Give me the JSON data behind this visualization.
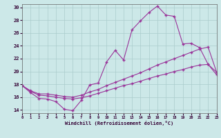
{
  "xlabel": "Windchill (Refroidissement éolien,°C)",
  "background_color": "#cce8e8",
  "grid_color": "#aacccc",
  "line_color": "#993399",
  "xlim": [
    0,
    23
  ],
  "ylim": [
    13.5,
    30.5
  ],
  "yticks": [
    14,
    16,
    18,
    20,
    22,
    24,
    26,
    28,
    30
  ],
  "xticks": [
    0,
    1,
    2,
    3,
    4,
    5,
    6,
    7,
    8,
    9,
    10,
    11,
    12,
    13,
    14,
    15,
    16,
    17,
    18,
    19,
    20,
    21,
    22,
    23
  ],
  "series1_x": [
    0,
    1,
    2,
    3,
    4,
    5,
    6,
    7,
    8,
    9,
    10,
    11,
    12,
    13,
    14,
    15,
    16,
    17,
    18,
    19,
    20,
    21,
    22,
    23
  ],
  "series1_y": [
    17.8,
    16.7,
    15.8,
    15.7,
    15.3,
    14.1,
    13.9,
    15.5,
    17.9,
    18.2,
    21.5,
    23.3,
    21.8,
    26.5,
    27.9,
    29.2,
    30.2,
    28.8,
    28.6,
    24.3,
    24.4,
    23.7,
    21.1,
    19.9
  ],
  "series2_x": [
    0,
    1,
    2,
    3,
    4,
    5,
    6,
    7,
    8,
    9,
    10,
    11,
    12,
    13,
    14,
    15,
    16,
    17,
    18,
    19,
    20,
    21,
    22,
    23
  ],
  "series2_y": [
    17.8,
    17.0,
    16.5,
    16.5,
    16.3,
    16.1,
    16.0,
    16.3,
    16.8,
    17.2,
    17.8,
    18.3,
    18.8,
    19.3,
    19.8,
    20.4,
    21.0,
    21.5,
    22.0,
    22.5,
    23.0,
    23.5,
    23.8,
    19.9
  ],
  "series3_x": [
    0,
    1,
    2,
    3,
    4,
    5,
    6,
    7,
    8,
    9,
    10,
    11,
    12,
    13,
    14,
    15,
    16,
    17,
    18,
    19,
    20,
    21,
    22,
    23
  ],
  "series3_y": [
    17.8,
    16.9,
    16.3,
    16.2,
    16.0,
    15.8,
    15.7,
    15.9,
    16.2,
    16.6,
    17.0,
    17.4,
    17.8,
    18.1,
    18.5,
    18.9,
    19.3,
    19.6,
    20.0,
    20.3,
    20.7,
    21.0,
    21.1,
    19.5
  ]
}
